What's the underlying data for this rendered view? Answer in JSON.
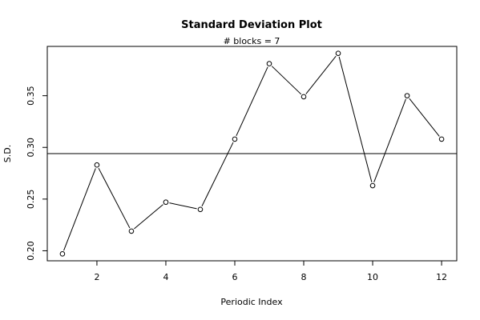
{
  "chart_data": {
    "type": "line",
    "title": "Standard Deviation Plot",
    "subtitle": "# blocks =  7",
    "xlabel": "Periodic Index",
    "ylabel": "S.D.",
    "x": [
      1,
      2,
      3,
      4,
      5,
      6,
      7,
      8,
      9,
      10,
      11,
      12
    ],
    "series": [
      {
        "values": [
          0.197,
          0.283,
          0.219,
          0.247,
          0.24,
          0.308,
          0.381,
          0.349,
          0.391,
          0.263,
          0.35,
          0.308
        ]
      }
    ],
    "reference_line": 0.294,
    "xlim": [
      0.56,
      12.44
    ],
    "ylim": [
      0.1903,
      0.3977
    ],
    "xticks": [
      2,
      4,
      6,
      8,
      10,
      12
    ],
    "yticks": [
      0.2,
      0.25,
      0.3,
      0.35
    ],
    "ytick_labels": [
      "0.20",
      "0.25",
      "0.30",
      "0.35"
    ],
    "grid": false,
    "legend": "none",
    "colors": {
      "line": "#000000",
      "marker_fill": "#ffffff"
    }
  }
}
